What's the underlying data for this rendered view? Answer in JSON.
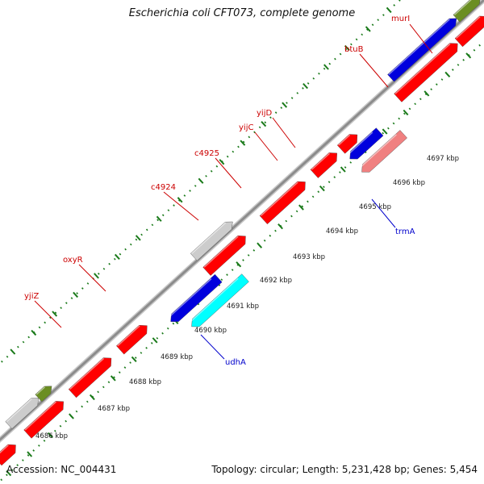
{
  "title": "Escherichia coli CFT073, complete genome",
  "footer": {
    "accession": "Accession: NC_004431",
    "summary": "Topology: circular; Length: 5,231,428 bp; Genes: 5,454"
  },
  "colors": {
    "red": "#ff0000",
    "blue": "#0000dd",
    "cyan": "#00ffff",
    "gray": "#cccccc",
    "olive": "#6b8e23",
    "pink": "#f08080",
    "lightpink": "#ffb6c1",
    "backbone": "#8c8c8c",
    "tick": "#1a7a1a",
    "forward_label": "#cc0000",
    "reverse_label": "#0000cc"
  },
  "scale_ticks": [
    {
      "label": "4686 kbp"
    },
    {
      "label": "4687 kbp"
    },
    {
      "label": "4688 kbp"
    },
    {
      "label": "4689 kbp"
    },
    {
      "label": "4690 kbp"
    },
    {
      "label": "4691 kbp"
    },
    {
      "label": "4692 kbp"
    },
    {
      "label": "4693 kbp"
    },
    {
      "label": "4694 kbp"
    },
    {
      "label": "4695 kbp"
    },
    {
      "label": "4696 kbp"
    },
    {
      "label": "4697 kbp"
    }
  ],
  "features": [
    {
      "color": "red",
      "strand": "forward",
      "track": "inner"
    },
    {
      "color": "red",
      "strand": "forward",
      "track": "inner"
    },
    {
      "color": "red",
      "strand": "forward",
      "track": "inner"
    },
    {
      "color": "red",
      "strand": "forward",
      "track": "inner"
    },
    {
      "color": "red",
      "strand": "forward",
      "track": "inner"
    },
    {
      "color": "red",
      "strand": "forward",
      "track": "inner"
    },
    {
      "color": "red",
      "strand": "forward",
      "track": "inner"
    },
    {
      "color": "red",
      "strand": "forward",
      "track": "inner"
    },
    {
      "color": "red",
      "strand": "forward",
      "track": "inner"
    },
    {
      "color": "red",
      "strand": "forward",
      "track": "inner"
    },
    {
      "color": "gray",
      "strand": "forward",
      "track": "outer"
    },
    {
      "color": "olive",
      "strand": "forward",
      "track": "outer"
    },
    {
      "color": "gray",
      "strand": "forward",
      "track": "outer"
    },
    {
      "color": "blue",
      "strand": "forward",
      "track": "outer"
    },
    {
      "color": "olive",
      "strand": "forward",
      "track": "outer"
    },
    {
      "color": "lightpink",
      "strand": "forward",
      "track": "outer"
    },
    {
      "color": "cyan",
      "strand": "reverse",
      "track": "inner"
    },
    {
      "color": "pink",
      "strand": "reverse",
      "track": "inner"
    },
    {
      "color": "blue",
      "strand": "reverse",
      "track": "outer"
    },
    {
      "color": "blue",
      "strand": "reverse",
      "track": "outer"
    }
  ],
  "gene_labels": [
    {
      "text": "yjiZ",
      "strand": "forward"
    },
    {
      "text": "oxyR",
      "strand": "forward"
    },
    {
      "text": "c4924",
      "strand": "forward"
    },
    {
      "text": "c4925",
      "strand": "forward"
    },
    {
      "text": "yijC",
      "strand": "forward"
    },
    {
      "text": "yijD",
      "strand": "forward"
    },
    {
      "text": "btuB",
      "strand": "forward"
    },
    {
      "text": "murI",
      "strand": "forward"
    },
    {
      "text": "udhA",
      "strand": "reverse"
    },
    {
      "text": "trmA",
      "strand": "reverse"
    }
  ]
}
